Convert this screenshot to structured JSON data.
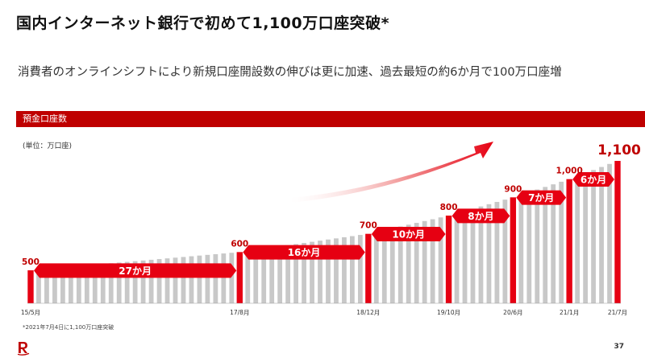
{
  "title": "国内インターネット銀行で初めて1,100万口座突破*",
  "subtitle": "消費者のオンラインシフトにより新規口座開設数の伸びは更に加速、過去最短の約6か月で100万口座増",
  "banner_label": "預金口座数",
  "unit_label": "(単位：万口座)",
  "footnote": "*2021年7月4日に1,100万口座突破",
  "page_number": "37",
  "colors": {
    "brand_red": "#bf0000",
    "accent_red": "#e60012",
    "bar_gray": "#c8c8c8"
  },
  "chart_data": {
    "type": "bar",
    "title": "預金口座数",
    "ylabel": "(単位：万口座)",
    "ylim": [
      0,
      1200
    ],
    "n_bars": 74,
    "series_start_value": 500,
    "series_end_value": 1100,
    "milestones": [
      {
        "index": 0,
        "value": 500,
        "date_label": "15/5月",
        "value_label": "500"
      },
      {
        "index": 26,
        "value": 600,
        "date_label": "17/8月",
        "value_label": "600"
      },
      {
        "index": 42,
        "value": 700,
        "date_label": "18/12月",
        "value_label": "700"
      },
      {
        "index": 52,
        "value": 800,
        "date_label": "19/10月",
        "value_label": "800"
      },
      {
        "index": 60,
        "value": 900,
        "date_label": "20/6月",
        "value_label": "900"
      },
      {
        "index": 67,
        "value": 1000,
        "date_label": "21/1月",
        "value_label": "1,000"
      },
      {
        "index": 73,
        "value": 1100,
        "date_label": "21/7月",
        "value_label": "1,100"
      }
    ],
    "intervals": [
      "27か月",
      "16か月",
      "10か月",
      "8か月",
      "7か月",
      "6か月"
    ]
  }
}
